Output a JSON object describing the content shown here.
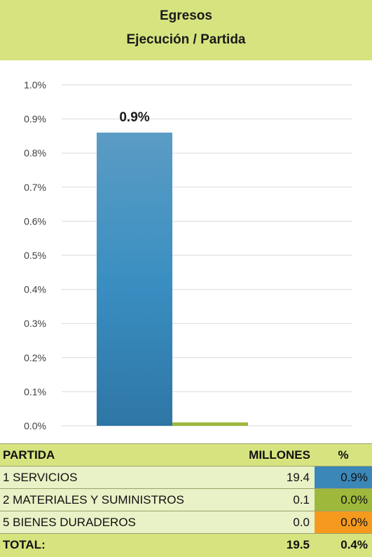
{
  "header": {
    "title_line1": "Egresos",
    "title_line2": "Ejecución / Partida"
  },
  "chart_data": {
    "type": "bar",
    "categories": [
      "1 SERVICIOS",
      "2 MATERIALES Y SUMINISTROS",
      "5 BIENES DURADEROS"
    ],
    "values": [
      0.86,
      0.01,
      0.0
    ],
    "value_unit": "%",
    "colors": [
      "#3a87b8",
      "#9db83a",
      "#f59a1e"
    ],
    "data_labels": [
      "0.9%",
      "",
      ""
    ],
    "ylim": [
      0,
      1.0
    ],
    "yticks": [
      "0.0%",
      "0.1%",
      "0.2%",
      "0.3%",
      "0.4%",
      "0.5%",
      "0.6%",
      "0.7%",
      "0.8%",
      "0.9%",
      "1.0%"
    ],
    "grid": true,
    "title": "",
    "xlabel": "",
    "ylabel": ""
  },
  "table": {
    "headers": [
      "PARTIDA",
      "MILLONES",
      "%"
    ],
    "rows": [
      {
        "partida": "1 SERVICIOS",
        "millones": "19.4",
        "pct": "0.9%",
        "color": "#3a87b8"
      },
      {
        "partida": "2 MATERIALES Y SUMINISTROS",
        "millones": "0.1",
        "pct": "0.0%",
        "color": "#9db83a"
      },
      {
        "partida": "5 BIENES DURADEROS",
        "millones": "0.0",
        "pct": "0.0%",
        "color": "#f59a1e"
      }
    ],
    "total": {
      "label": "TOTAL:",
      "millones": "19.5",
      "pct": "0.4%"
    }
  }
}
